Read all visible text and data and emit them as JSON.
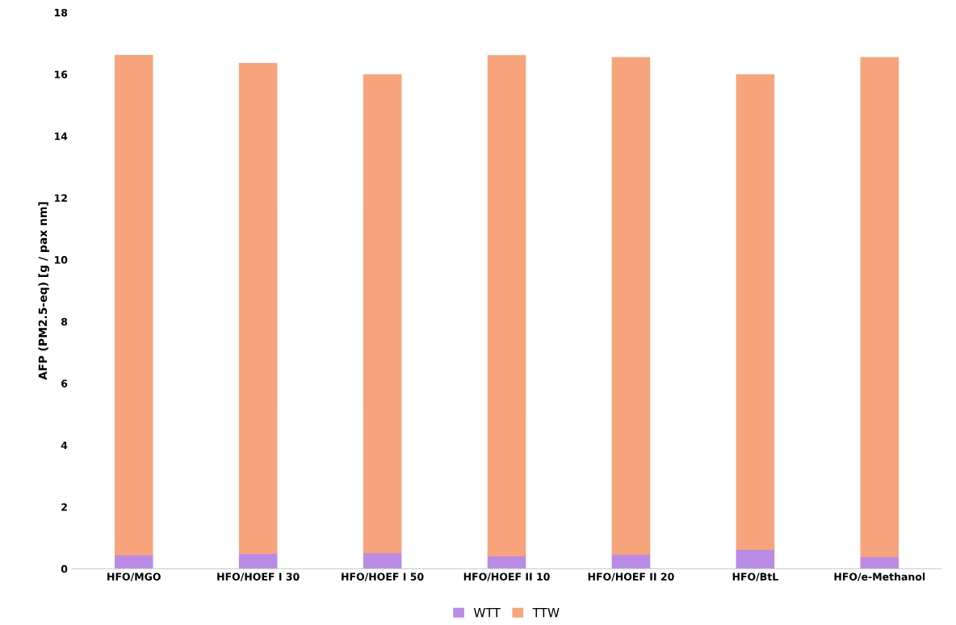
{
  "chart_data": {
    "type": "bar",
    "stacked": true,
    "ylabel": "AFP (PM2.5-eq) [g / pax nm]",
    "categories": [
      "HFO/MGO",
      "HFO/HOEF I 30",
      "HFO/HOEF I 50",
      "HFO/HOEF II 10",
      "HFO/HOEF II 20",
      "HFO/BtL",
      "HFO/e-Methanol"
    ],
    "series": [
      {
        "name": "WTT",
        "color": "#b98ae6",
        "values": [
          0.45,
          0.5,
          0.52,
          0.42,
          0.47,
          0.63,
          0.39
        ]
      },
      {
        "name": "TTW",
        "color": "#f7a47c",
        "values": [
          16.16,
          15.85,
          15.46,
          16.18,
          16.07,
          15.35,
          16.15
        ]
      }
    ],
    "ylim": [
      0,
      18
    ],
    "yticks": [
      0,
      2,
      4,
      6,
      8,
      10,
      12,
      14,
      16,
      18
    ],
    "legend": "bottom",
    "grid": false
  }
}
